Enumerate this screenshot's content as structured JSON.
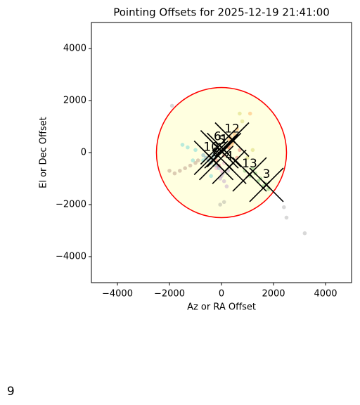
{
  "chart_data": {
    "type": "scatter",
    "title": "Pointing Offsets for 2025-12-19 21:41:00",
    "x_label": "Az or RA Offset",
    "y_label": "El or Dec Offset",
    "xlim": [
      -5000,
      5000
    ],
    "ylim": [
      -5000,
      5000
    ],
    "xticks": [
      {
        "value": -4000,
        "label": "−4000"
      },
      {
        "value": -2000,
        "label": "−2000"
      },
      0,
      2000,
      4000
    ],
    "yticks": [
      {
        "value": -4000,
        "label": "−4000"
      },
      {
        "value": -2000,
        "label": "−2000"
      },
      0,
      2000,
      4000
    ],
    "circle": {
      "x": 0,
      "y": 0,
      "r": 2500,
      "color": "#ff0000",
      "fill": "#ffffe0"
    },
    "series": [
      {
        "color": "#1f77b4",
        "x": [
          -600,
          -400,
          -300,
          -200,
          -500,
          -100,
          -700,
          -350
        ],
        "y": [
          -200,
          -400,
          -100,
          -500,
          -300,
          -600,
          -100,
          -250
        ]
      },
      {
        "color": "#ff7f0e",
        "x": [
          300,
          500,
          400,
          600,
          350,
          450,
          1100,
          250
        ],
        "y": [
          500,
          700,
          300,
          900,
          600,
          400,
          1500,
          200
        ]
      },
      {
        "color": "#2ca02c",
        "x": [
          900,
          1100,
          1300,
          1500,
          1700,
          1800,
          1600,
          1200,
          1400
        ],
        "y": [
          -700,
          -900,
          -800,
          -1000,
          -1200,
          -1400,
          -1300,
          -600,
          -1100
        ]
      },
      {
        "color": "#d62728",
        "x": [
          -200,
          100,
          300,
          600,
          700,
          -100
        ],
        "y": [
          -300,
          -100,
          200,
          -200,
          100,
          -500
        ]
      },
      {
        "color": "#9467bd",
        "x": [
          0,
          100,
          200,
          50,
          -50,
          250
        ],
        "y": [
          -900,
          -1100,
          -1300,
          -800,
          -1000,
          -700
        ]
      },
      {
        "color": "#8c564b",
        "x": [
          -2000,
          -1800,
          -1600,
          -1400,
          -1200,
          -1000,
          -900
        ],
        "y": [
          -700,
          -800,
          -700,
          -600,
          -500,
          -400,
          -300
        ]
      },
      {
        "color": "#e377c2",
        "x": [
          -100,
          0,
          100,
          -200
        ],
        "y": [
          -500,
          -700,
          -400,
          -600
        ]
      },
      {
        "color": "#7f7f7f",
        "x": [
          -1900,
          2400,
          2500,
          3200,
          100,
          -50
        ],
        "y": [
          1800,
          -2100,
          -2500,
          -3100,
          -1900,
          -2000
        ]
      },
      {
        "color": "#bcbd22",
        "x": [
          700,
          800,
          1000,
          1200
        ],
        "y": [
          1500,
          1200,
          -200,
          100
        ]
      },
      {
        "color": "#17becf",
        "x": [
          -1500,
          -1300,
          -700,
          -1000,
          -400,
          -1100
        ],
        "y": [
          300,
          200,
          -300,
          100,
          -900,
          -300
        ]
      }
    ],
    "targets": [
      {
        "label": "12",
        "x": 405,
        "y": 500
      },
      {
        "label": "6",
        "x": -150,
        "y": 200
      },
      {
        "label": "10",
        "x": -400,
        "y": -200
      },
      {
        "label": "13",
        "x": 1080,
        "y": -840
      },
      {
        "label": "3",
        "x": 1730,
        "y": -1240
      },
      {
        "label": "4",
        "x": 300,
        "y": -550
      },
      {
        "label": "5",
        "x": 0,
        "y": 50
      },
      {
        "label": "1",
        "x": 100,
        "y": 100
      },
      {
        "label": "8",
        "x": -200,
        "y": -400
      },
      {
        "label": "9",
        "x": -8100,
        "y": -9600
      }
    ]
  }
}
